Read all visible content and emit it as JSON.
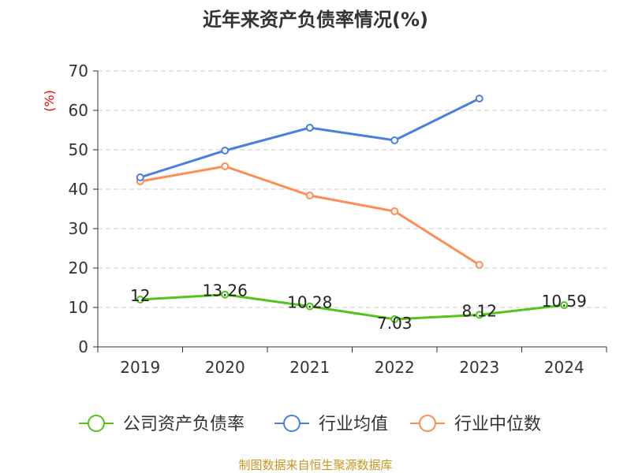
{
  "chart_data": {
    "type": "line",
    "title": "近年来资产负债率情况(%)",
    "ylabel": "(%)",
    "xlabel": "",
    "categories": [
      "2019",
      "2020",
      "2021",
      "2022",
      "2023",
      "2024"
    ],
    "ylim": [
      0,
      70
    ],
    "yticks": [
      0,
      10,
      20,
      30,
      40,
      50,
      60,
      70
    ],
    "grid": true,
    "legend_position": "bottom",
    "series": [
      {
        "name": "公司资产负债率",
        "color": "#52c41a",
        "values": [
          12,
          13.26,
          10.28,
          7.03,
          8.12,
          10.59
        ],
        "labels": [
          "12",
          "13.26",
          "10.28",
          "7.03",
          "8.12",
          "10.59"
        ]
      },
      {
        "name": "行业均值",
        "color": "#4a7ee0",
        "values": [
          43,
          49.8,
          55.6,
          52.4,
          63,
          null
        ]
      },
      {
        "name": "行业中位数",
        "color": "#ff8c55",
        "values": [
          42,
          45.8,
          38.4,
          34.4,
          20.8,
          null
        ]
      }
    ]
  },
  "footer": "制图数据来自恒生聚源数据库"
}
